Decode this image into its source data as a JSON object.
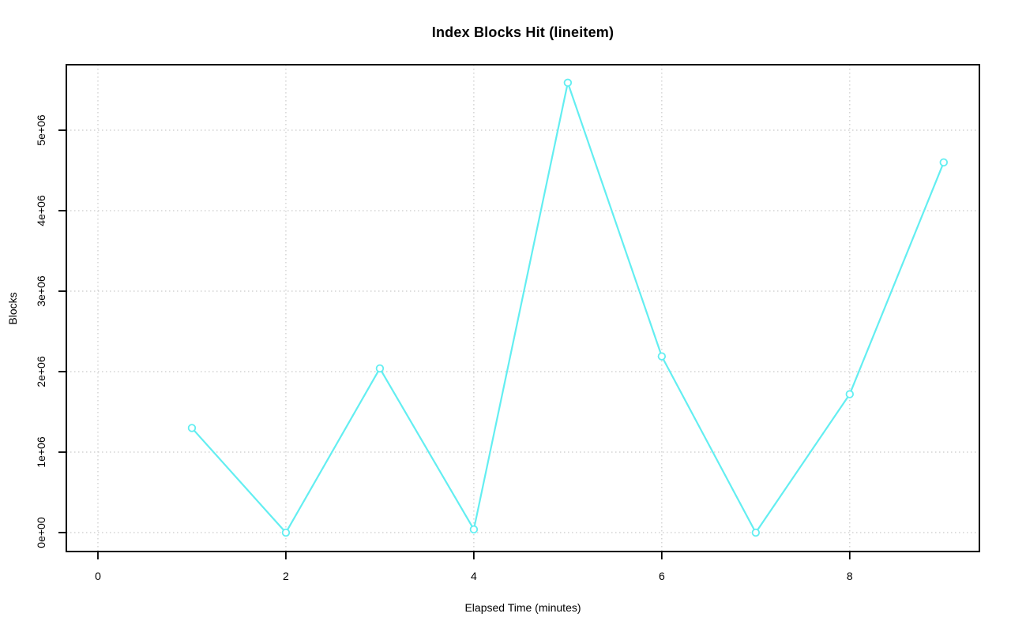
{
  "window": {
    "background": "#ffffff"
  },
  "chart_data": {
    "type": "line",
    "title": "Index Blocks Hit (lineitem)",
    "xlabel": "Elapsed Time (minutes)",
    "ylabel": "Blocks",
    "x": [
      1,
      2,
      3,
      4,
      5,
      6,
      7,
      8,
      9
    ],
    "values": [
      1300000,
      0,
      2040000,
      40000,
      5590000,
      2190000,
      0,
      1720000,
      4600000
    ],
    "x_ticks": [
      0,
      2,
      4,
      6,
      8
    ],
    "x_tick_labels": [
      "0",
      "2",
      "4",
      "6",
      "8"
    ],
    "y_ticks": [
      0,
      1000000,
      2000000,
      3000000,
      4000000,
      5000000
    ],
    "y_tick_labels": [
      "0e+00",
      "1e+06",
      "2e+06",
      "3e+06",
      "4e+06",
      "5e+06"
    ],
    "xlim": [
      -0.336,
      9.38
    ],
    "ylim": [
      -235000,
      5814000
    ],
    "grid": true,
    "grid_style": "dotted",
    "legend_position": "none",
    "marker": "open-circle",
    "line_color": "#63EEF1",
    "marker_fill": "#ffffff",
    "grid_color": "#c9c9c9",
    "axis_color": "#000000",
    "text_color": "#000000"
  }
}
